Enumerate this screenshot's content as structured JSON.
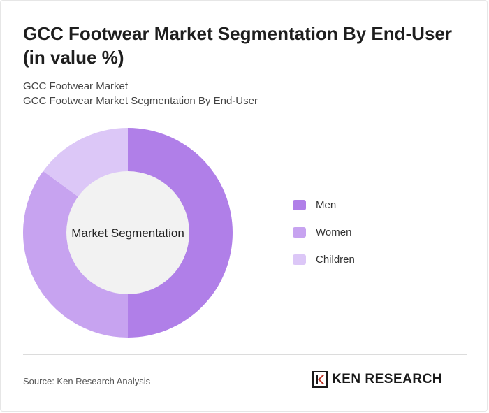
{
  "header": {
    "title": "GCC Footwear Market Segmentation By End-User (in value %)",
    "subtitle_line1": "GCC Footwear Market",
    "subtitle_line2": "GCC Footwear Market Segmentation By End-User"
  },
  "chart_data": {
    "type": "pie",
    "variant": "donut",
    "center_label": "Market Segmentation",
    "categories": [
      "Men",
      "Women",
      "Children"
    ],
    "values": [
      50,
      35,
      15
    ],
    "colors": [
      "#b07fe8",
      "#c7a3f0",
      "#dcc7f7"
    ],
    "legend_position": "right"
  },
  "footer": {
    "source": "Source: Ken Research Analysis",
    "logo_text": "KEN RESEARCH",
    "logo_icon": "ken-research-k-logo"
  }
}
